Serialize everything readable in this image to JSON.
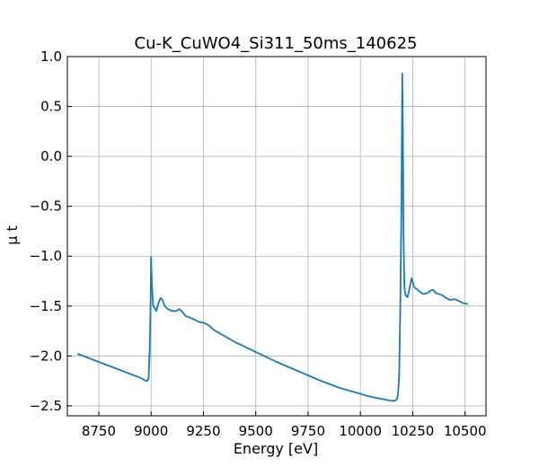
{
  "chart_data": {
    "type": "line",
    "title": "Cu-K_CuWO4_Si311_50ms_140625",
    "xlabel": "Energy [eV]",
    "ylabel": "μ t",
    "xlim": [
      8600,
      10600
    ],
    "ylim": [
      -2.6,
      1.0
    ],
    "xticks": [
      8750,
      9000,
      9250,
      9500,
      9750,
      10000,
      10250,
      10500
    ],
    "yticks": [
      1.0,
      0.5,
      0.0,
      -0.5,
      -1.0,
      -1.5,
      -2.0,
      -2.5
    ],
    "ytick_labels": [
      "1.0",
      "0.5",
      "0.0",
      "−0.5",
      "−1.0",
      "−1.5",
      "−2.0",
      "−2.5"
    ],
    "grid": true,
    "series": [
      {
        "color": "#1f77b4",
        "x": [
          8650,
          8750,
          8850,
          8950,
          8975,
          8982,
          8988,
          8993,
          8997,
          9000,
          9004,
          9010,
          9018,
          9025,
          9035,
          9045,
          9055,
          9065,
          9080,
          9100,
          9120,
          9135,
          9150,
          9165,
          9180,
          9200,
          9230,
          9255,
          9280,
          9300,
          9350,
          9400,
          9500,
          9600,
          9700,
          9800,
          9900,
          10000,
          10050,
          10100,
          10150,
          10165,
          10175,
          10180,
          10185,
          10190,
          10196,
          10200,
          10203,
          10206,
          10210,
          10215,
          10220,
          10225,
          10235,
          10245,
          10255,
          10262,
          10270,
          10280,
          10300,
          10320,
          10340,
          10350,
          10360,
          10375,
          10390,
          10410,
          10430,
          10450,
          10470,
          10490,
          10510
        ],
        "y": [
          -1.98,
          -2.06,
          -2.14,
          -2.22,
          -2.25,
          -2.25,
          -2.22,
          -1.95,
          -1.55,
          -1.01,
          -1.3,
          -1.5,
          -1.52,
          -1.55,
          -1.47,
          -1.42,
          -1.44,
          -1.5,
          -1.53,
          -1.55,
          -1.55,
          -1.53,
          -1.56,
          -1.6,
          -1.61,
          -1.63,
          -1.66,
          -1.67,
          -1.7,
          -1.74,
          -1.8,
          -1.86,
          -1.96,
          -2.06,
          -2.15,
          -2.24,
          -2.32,
          -2.38,
          -2.41,
          -2.43,
          -2.45,
          -2.45,
          -2.43,
          -2.38,
          -2.2,
          -1.6,
          -0.5,
          0.83,
          0.2,
          -0.8,
          -1.3,
          -1.39,
          -1.4,
          -1.41,
          -1.32,
          -1.22,
          -1.3,
          -1.32,
          -1.33,
          -1.35,
          -1.38,
          -1.37,
          -1.34,
          -1.34,
          -1.37,
          -1.38,
          -1.39,
          -1.42,
          -1.44,
          -1.43,
          -1.45,
          -1.47,
          -1.48
        ]
      }
    ]
  }
}
